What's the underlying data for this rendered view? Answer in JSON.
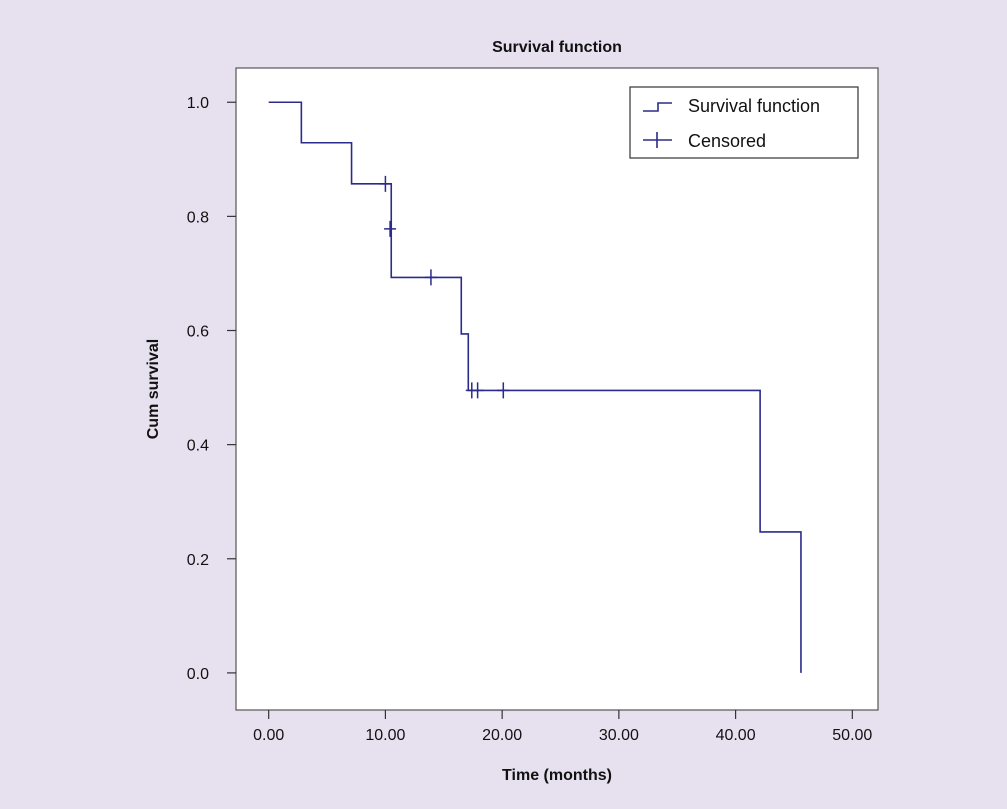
{
  "chart_data": {
    "type": "line",
    "title": "Survival function",
    "xlabel": "Time (months)",
    "ylabel": "Cum survival",
    "xlim": [
      -2.8,
      52.2
    ],
    "ylim": [
      -0.065,
      1.06
    ],
    "x_ticks": [
      {
        "value": 0,
        "label": "0.00"
      },
      {
        "value": 10,
        "label": "10.00"
      },
      {
        "value": 20,
        "label": "20.00"
      },
      {
        "value": 30,
        "label": "30.00"
      },
      {
        "value": 40,
        "label": "40.00"
      },
      {
        "value": 50,
        "label": "50.00"
      }
    ],
    "y_ticks": [
      {
        "value": 0.0,
        "label": "0.0"
      },
      {
        "value": 0.2,
        "label": "0.2"
      },
      {
        "value": 0.4,
        "label": "0.4"
      },
      {
        "value": 0.6,
        "label": "0.6"
      },
      {
        "value": 0.8,
        "label": "0.8"
      },
      {
        "value": 1.0,
        "label": "1.0"
      }
    ],
    "grid": false,
    "legend_position": "top-right",
    "series": [
      {
        "name": "Survival function",
        "style": "step",
        "color": "#2b2b8c",
        "points": [
          [
            0,
            1.0
          ],
          [
            2.8,
            0.929
          ],
          [
            7.1,
            0.857
          ],
          [
            10.5,
            0.693
          ],
          [
            16.5,
            0.594
          ],
          [
            17.1,
            0.495
          ],
          [
            42.1,
            0.247
          ],
          [
            45.6,
            0.0
          ]
        ]
      },
      {
        "name": "Censored",
        "style": "marker",
        "color": "#2b2b8c",
        "points": [
          [
            10.0,
            0.857
          ],
          [
            10.4,
            0.778
          ],
          [
            13.9,
            0.693
          ],
          [
            17.4,
            0.495
          ],
          [
            17.9,
            0.495
          ],
          [
            20.1,
            0.495
          ]
        ]
      }
    ]
  }
}
